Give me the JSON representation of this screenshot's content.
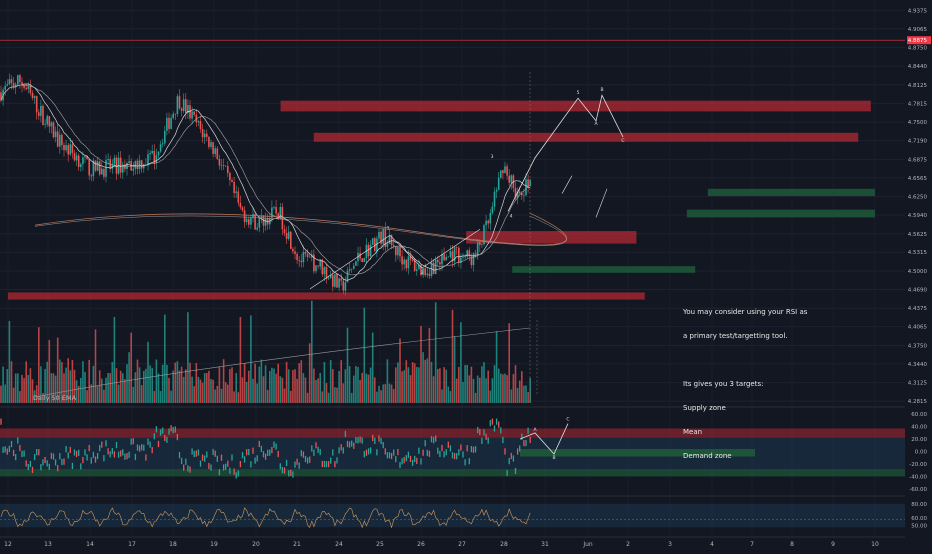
{
  "note": {
    "line1": "You may consider using your RSI as",
    "line2": "a primary test/targetting tool.",
    "line3": "Its gives you 3 targets:",
    "line4": "Supply zone",
    "line5": "Mean",
    "line6": "Demand zone"
  },
  "volume_label": "Daily 50 EMA",
  "colors": {
    "background": "#131722",
    "up": "#26a69a",
    "down": "#ef5350",
    "supply_zone": "#b22833",
    "demand_zone": "#1e5a3a",
    "current_price_line": "#f23645",
    "text": "#b2b5be"
  },
  "chart_data": [
    {
      "type": "candlestick",
      "panel": "price",
      "y_ticks": [
        "4.9375",
        "4.9065",
        "4.8750",
        "4.8440",
        "4.8125",
        "4.7815",
        "4.7500",
        "4.7190",
        "4.6875",
        "4.6565",
        "4.6250",
        "4.5940",
        "4.5625",
        "4.5315",
        "4.5000",
        "4.4690",
        "4.4375",
        "4.4065",
        "4.3750",
        "4.3440",
        "4.3125",
        "4.2815"
      ],
      "current_price_label": "4.8875",
      "ylim": [
        4.275,
        4.955
      ],
      "x_ticks": [
        "12",
        "13",
        "14",
        "17",
        "18",
        "19",
        "20",
        "21",
        "24",
        "25",
        "26",
        "27",
        "28",
        "31",
        "Jun",
        "2",
        "3",
        "4",
        "7",
        "8",
        "9",
        "10"
      ],
      "supply_zones": [
        {
          "from_day": 17.6,
          "to_day": 31.9,
          "low": 4.768,
          "high": 4.786
        },
        {
          "from_day": 18.4,
          "to_day": 31.6,
          "low": 4.717,
          "high": 4.732
        },
        {
          "from_day": 22.1,
          "to_day": 26.2,
          "low": 4.546,
          "high": 4.567
        },
        {
          "from_day": 11.0,
          "to_day": 26.4,
          "low": 4.452,
          "high": 4.464
        }
      ],
      "demand_zones": [
        {
          "from_day": 27.9,
          "to_day": 33.4,
          "low": 4.626,
          "high": 4.638
        },
        {
          "from_day": 27.4,
          "to_day": 35.0,
          "low": 4.59,
          "high": 4.603
        },
        {
          "from_day": 23.2,
          "to_day": 27.6,
          "low": 4.497,
          "high": 4.508
        }
      ],
      "wave_labels": [
        "1",
        "2",
        "3",
        "4",
        "5",
        "A",
        "B",
        "C"
      ]
    },
    {
      "type": "bar",
      "panel": "volume",
      "legend": "Daily 50 EMA"
    },
    {
      "type": "line",
      "panel": "rsi",
      "y_ticks": [
        "60.00",
        "40.00",
        "20.00",
        "0.00",
        "-20.00",
        "-40.00",
        "-60.00"
      ],
      "ylim": [
        -70,
        70
      ],
      "bands": {
        "supply": [
          22,
          37
        ],
        "mean": [
          -8,
          4
        ],
        "demand": [
          -40,
          -28
        ]
      },
      "wave_labels": [
        "A",
        "B",
        "C"
      ]
    },
    {
      "type": "line",
      "panel": "oscillator",
      "y_ticks": [
        "80.00",
        "60.00",
        "50.00"
      ],
      "ylim": [
        40,
        90
      ]
    }
  ]
}
